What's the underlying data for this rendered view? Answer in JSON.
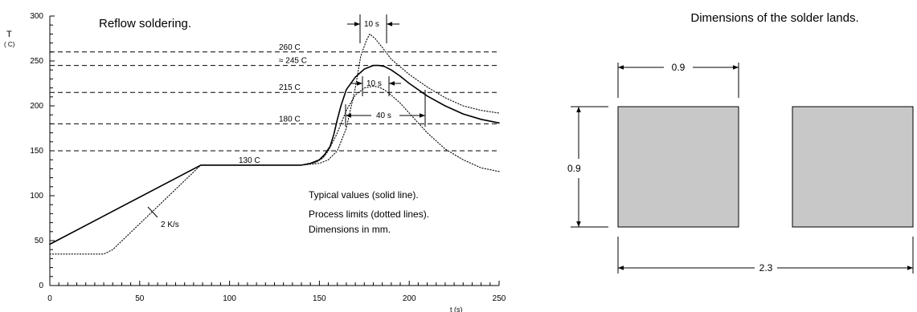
{
  "reflow_chart": {
    "title": "Reflow soldering.",
    "y_axis_label": "T",
    "y_axis_unit": "( C)",
    "x_axis_label": "t (s)",
    "x_range": [
      0,
      250
    ],
    "y_range": [
      0,
      300
    ],
    "x_ticks": [
      0,
      50,
      100,
      150,
      200,
      250
    ],
    "y_ticks": [
      0,
      50,
      100,
      150,
      200,
      250,
      300
    ],
    "reference_lines": [
      {
        "value": 260,
        "label": "260  C"
      },
      {
        "value": 245,
        "label": "≈ 245  C"
      },
      {
        "value": 215,
        "label": "215  C"
      },
      {
        "value": 180,
        "label": "180  C"
      },
      {
        "value": 150,
        "label": ""
      }
    ],
    "plateau_label": "130  C",
    "ramp_label": "2 K/s",
    "interval_labels": [
      "10 s",
      "10 s",
      "40 s"
    ],
    "legend_notes": [
      "Typical values (solid line).",
      "Process limits (dotted lines).",
      "Dimensions in mm."
    ]
  },
  "chart_data": {
    "type": "line",
    "xlabel": "t (s)",
    "ylabel": "T",
    "xlim": [
      0,
      250
    ],
    "ylim": [
      0,
      300
    ],
    "grid": false,
    "series": [
      {
        "style": "solid",
        "x": [
          0,
          84,
          140,
          145,
          150,
          153,
          156,
          158,
          160,
          162,
          165,
          170,
          175,
          180,
          183,
          186,
          190,
          195,
          200,
          210,
          220,
          230,
          240,
          250
        ],
        "y": [
          46,
          134,
          134,
          136,
          140,
          146,
          155,
          168,
          185,
          200,
          218,
          232,
          241,
          245,
          245,
          244,
          240,
          233,
          225,
          211,
          200,
          191,
          185,
          181
        ]
      },
      {
        "style": "dotted",
        "x": [
          0,
          30,
          35,
          84,
          140,
          150,
          155,
          160,
          165,
          170,
          173,
          176,
          178,
          181,
          185,
          190,
          200,
          210,
          220,
          230,
          240,
          250
        ],
        "y": [
          35,
          35,
          40,
          134,
          134,
          136,
          140,
          150,
          175,
          220,
          255,
          272,
          280,
          275,
          265,
          252,
          235,
          221,
          209,
          200,
          195,
          192
        ]
      },
      {
        "style": "dotted",
        "x": [
          0,
          84,
          140,
          148,
          152,
          155,
          160,
          165,
          170,
          175,
          180,
          183,
          186,
          190,
          195,
          200,
          210,
          220,
          230,
          240,
          250
        ],
        "y": [
          46,
          134,
          134,
          137,
          142,
          150,
          170,
          195,
          212,
          220,
          222,
          221,
          218,
          212,
          203,
          192,
          170,
          152,
          140,
          131,
          127
        ]
      }
    ]
  },
  "lands_diagram": {
    "title": "Dimensions of the solder lands.",
    "pad_color": "#c8c8c8",
    "dim_width": "0.9",
    "dim_height": "0.9",
    "dim_total": "2.3"
  }
}
